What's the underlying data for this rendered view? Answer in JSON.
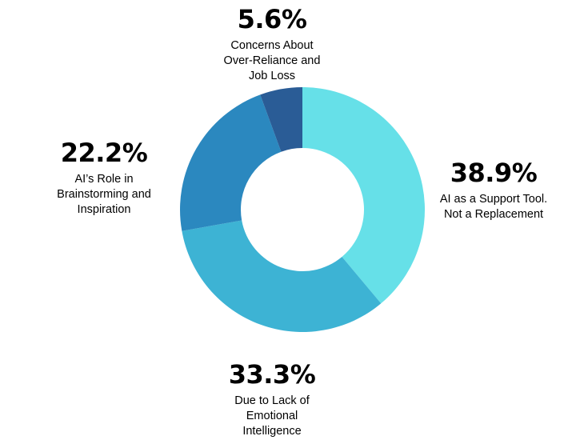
{
  "chart_data": {
    "type": "pie",
    "donut": true,
    "title": "",
    "legend": "none",
    "slices": [
      {
        "label": "AI as a Support Tool.\nNot a Replacement",
        "value": 38.9,
        "value_label": "38.9%",
        "color": "#66E0E8"
      },
      {
        "label": "Due to Lack of\nEmotional\nIntelligence",
        "value": 33.3,
        "value_label": "33.3%",
        "color": "#3DB3D4"
      },
      {
        "label": "AI’s Role in\nBrainstorming and\nInspiration",
        "value": 22.2,
        "value_label": "22.2%",
        "color": "#2B88BF"
      },
      {
        "label": "Concerns About\nOver-Reliance and\nJob Loss",
        "value": 5.6,
        "value_label": "5.6%",
        "color": "#2A5C96"
      }
    ]
  }
}
